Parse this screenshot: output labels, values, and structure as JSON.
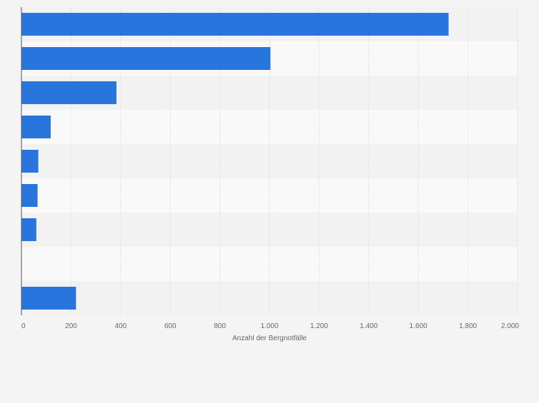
{
  "chart_data": {
    "type": "bar",
    "orientation": "horizontal",
    "title": "",
    "xlabel": "Anzahl der Bergnotfälle",
    "ylabel": "",
    "categories": [
      "",
      "",
      "",
      "",
      "",
      "",
      "",
      "",
      ""
    ],
    "values": [
      1722,
      1004,
      383,
      118,
      68,
      65,
      60,
      0,
      220
    ],
    "xlim": [
      0,
      2000
    ],
    "xticks": [
      0,
      200,
      400,
      600,
      800,
      1000,
      1200,
      1400,
      1600,
      1800,
      2000
    ],
    "xtick_labels": [
      "0",
      "200",
      "400",
      "600",
      "800",
      "1.000",
      "1.200",
      "1.400",
      "1.600",
      "1.800",
      "2.000"
    ],
    "grid": true,
    "legend": "none",
    "colors": {
      "bar": "#2876dd",
      "band_light": "#f9f9f9",
      "band_dark": "#f2f2f2",
      "grid": "#dcdcdc",
      "axis": "#555555",
      "text": "#666666"
    }
  }
}
